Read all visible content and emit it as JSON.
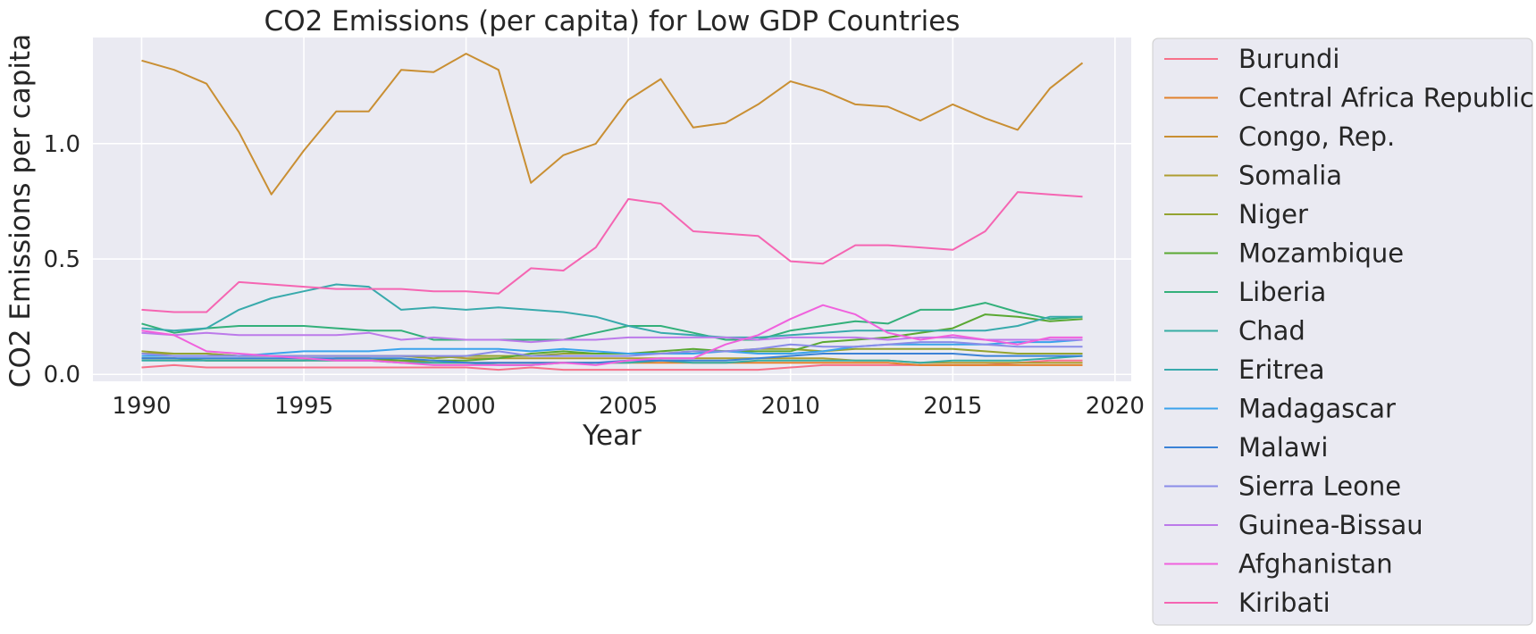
{
  "chart_data": {
    "type": "line",
    "title": "CO2 Emissions (per capita) for Low GDP Countries",
    "xlabel": "Year",
    "ylabel": "CO2 Emissions per capita",
    "xlim": [
      1988.5,
      2020.5
    ],
    "ylim": [
      -0.03,
      1.46
    ],
    "xticks": [
      1990,
      1995,
      2000,
      2005,
      2010,
      2015,
      2020
    ],
    "xtick_labels": [
      "1990",
      "1995",
      "2000",
      "2005",
      "2010",
      "2015",
      "2020"
    ],
    "yticks": [
      0.0,
      0.5,
      1.0
    ],
    "ytick_labels": [
      "0.0",
      "0.5",
      "1.0"
    ],
    "grid": true,
    "legend_position": "outside-right",
    "x": [
      1990,
      1991,
      1992,
      1993,
      1994,
      1995,
      1996,
      1997,
      1998,
      1999,
      2000,
      2001,
      2002,
      2003,
      2004,
      2005,
      2006,
      2007,
      2008,
      2009,
      2010,
      2011,
      2012,
      2013,
      2014,
      2015,
      2016,
      2017,
      2018,
      2019
    ],
    "series": [
      {
        "name": "Burundi",
        "color": "#f77189",
        "values": [
          0.03,
          0.04,
          0.03,
          0.03,
          0.03,
          0.03,
          0.03,
          0.03,
          0.03,
          0.03,
          0.03,
          0.02,
          0.03,
          0.02,
          0.02,
          0.02,
          0.02,
          0.02,
          0.02,
          0.02,
          0.03,
          0.04,
          0.04,
          0.04,
          0.04,
          0.04,
          0.04,
          0.05,
          0.06,
          0.06
        ]
      },
      {
        "name": "Central Africa Republic",
        "color": "#e1812c",
        "values": [
          0.07,
          0.07,
          0.06,
          0.06,
          0.06,
          0.06,
          0.06,
          0.06,
          0.06,
          0.05,
          0.05,
          0.05,
          0.05,
          0.05,
          0.05,
          0.05,
          0.05,
          0.05,
          0.05,
          0.05,
          0.05,
          0.05,
          0.05,
          0.05,
          0.04,
          0.04,
          0.04,
          0.04,
          0.04,
          0.04
        ]
      },
      {
        "name": "Congo, Rep.",
        "color": "#c98f33",
        "values": [
          1.36,
          1.32,
          1.26,
          1.05,
          0.78,
          0.97,
          1.14,
          1.14,
          1.32,
          1.31,
          1.39,
          1.32,
          0.83,
          0.95,
          1.0,
          1.19,
          1.28,
          1.07,
          1.09,
          1.17,
          1.27,
          1.23,
          1.17,
          1.16,
          1.1,
          1.17,
          1.11,
          1.06,
          1.24,
          1.35
        ]
      },
      {
        "name": "Somalia",
        "color": "#ae9d31",
        "values": [
          0.09,
          0.09,
          0.09,
          0.08,
          0.08,
          0.08,
          0.08,
          0.08,
          0.08,
          0.08,
          0.07,
          0.07,
          0.07,
          0.07,
          0.07,
          0.07,
          0.07,
          0.07,
          0.07,
          0.07,
          0.07,
          0.07,
          0.06,
          0.06,
          0.05,
          0.05,
          0.05,
          0.05,
          0.05,
          0.05
        ]
      },
      {
        "name": "Niger",
        "color": "#94a331",
        "values": [
          0.1,
          0.09,
          0.09,
          0.08,
          0.08,
          0.08,
          0.08,
          0.08,
          0.08,
          0.07,
          0.08,
          0.08,
          0.08,
          0.09,
          0.09,
          0.09,
          0.09,
          0.1,
          0.1,
          0.11,
          0.11,
          0.1,
          0.11,
          0.11,
          0.11,
          0.11,
          0.1,
          0.09,
          0.09,
          0.09
        ]
      },
      {
        "name": "Mozambique",
        "color": "#5aa832",
        "values": [
          0.07,
          0.07,
          0.06,
          0.06,
          0.06,
          0.06,
          0.07,
          0.07,
          0.06,
          0.06,
          0.06,
          0.07,
          0.09,
          0.1,
          0.09,
          0.09,
          0.1,
          0.11,
          0.1,
          0.1,
          0.1,
          0.14,
          0.15,
          0.16,
          0.18,
          0.2,
          0.26,
          0.25,
          0.23,
          0.24
        ]
      },
      {
        "name": "Liberia",
        "color": "#33b07a",
        "values": [
          0.22,
          0.18,
          0.2,
          0.21,
          0.21,
          0.21,
          0.2,
          0.19,
          0.19,
          0.15,
          0.15,
          0.15,
          0.15,
          0.15,
          0.18,
          0.21,
          0.21,
          0.18,
          0.15,
          0.15,
          0.19,
          0.21,
          0.23,
          0.22,
          0.28,
          0.28,
          0.31,
          0.27,
          0.24,
          0.25
        ]
      },
      {
        "name": "Chad",
        "color": "#36ada4",
        "values": [
          0.06,
          0.06,
          0.06,
          0.06,
          0.06,
          0.06,
          0.06,
          0.06,
          0.05,
          0.05,
          0.05,
          0.04,
          0.04,
          0.05,
          0.05,
          0.05,
          0.06,
          0.05,
          0.05,
          0.06,
          0.06,
          0.06,
          0.06,
          0.06,
          0.05,
          0.06,
          0.06,
          0.06,
          0.07,
          0.08
        ]
      },
      {
        "name": "Eritrea",
        "color": "#38aaac",
        "values": [
          0.2,
          0.19,
          0.2,
          0.28,
          0.33,
          0.36,
          0.39,
          0.38,
          0.28,
          0.29,
          0.28,
          0.29,
          0.28,
          0.27,
          0.25,
          0.21,
          0.18,
          0.17,
          0.16,
          0.16,
          0.17,
          0.18,
          0.19,
          0.19,
          0.19,
          0.19,
          0.19,
          0.21,
          0.25,
          0.25
        ]
      },
      {
        "name": "Madagascar",
        "color": "#3ba3ec",
        "values": [
          0.08,
          0.08,
          0.08,
          0.08,
          0.09,
          0.1,
          0.1,
          0.1,
          0.11,
          0.11,
          0.11,
          0.11,
          0.1,
          0.11,
          0.1,
          0.09,
          0.09,
          0.09,
          0.1,
          0.09,
          0.09,
          0.1,
          0.12,
          0.13,
          0.13,
          0.13,
          0.13,
          0.14,
          0.14,
          0.15
        ]
      },
      {
        "name": "Malawi",
        "color": "#3b82d6",
        "values": [
          0.07,
          0.07,
          0.07,
          0.07,
          0.07,
          0.07,
          0.07,
          0.07,
          0.07,
          0.06,
          0.05,
          0.05,
          0.05,
          0.05,
          0.05,
          0.06,
          0.06,
          0.06,
          0.06,
          0.07,
          0.08,
          0.09,
          0.09,
          0.09,
          0.09,
          0.09,
          0.08,
          0.08,
          0.08,
          0.08
        ]
      },
      {
        "name": "Sierra Leone",
        "color": "#8a8ce8",
        "values": [
          0.09,
          0.08,
          0.08,
          0.08,
          0.08,
          0.08,
          0.08,
          0.08,
          0.08,
          0.08,
          0.08,
          0.1,
          0.08,
          0.08,
          0.08,
          0.08,
          0.09,
          0.1,
          0.1,
          0.11,
          0.13,
          0.12,
          0.12,
          0.13,
          0.14,
          0.14,
          0.13,
          0.12,
          0.12,
          0.12
        ]
      },
      {
        "name": "Guinea-Bissau",
        "color": "#bc7aea",
        "values": [
          0.18,
          0.17,
          0.18,
          0.17,
          0.17,
          0.17,
          0.17,
          0.18,
          0.15,
          0.16,
          0.15,
          0.15,
          0.14,
          0.15,
          0.15,
          0.16,
          0.16,
          0.16,
          0.16,
          0.15,
          0.16,
          0.16,
          0.16,
          0.15,
          0.16,
          0.16,
          0.15,
          0.15,
          0.15,
          0.15
        ]
      },
      {
        "name": "Afghanistan",
        "color": "#f061dd",
        "values": [
          0.19,
          0.17,
          0.1,
          0.09,
          0.08,
          0.07,
          0.06,
          0.06,
          0.05,
          0.04,
          0.04,
          0.04,
          0.04,
          0.05,
          0.04,
          0.06,
          0.07,
          0.07,
          0.13,
          0.17,
          0.24,
          0.3,
          0.26,
          0.18,
          0.15,
          0.17,
          0.15,
          0.13,
          0.16,
          0.16
        ]
      },
      {
        "name": "Kiribati",
        "color": "#f565b2",
        "values": [
          0.28,
          0.27,
          0.27,
          0.4,
          0.39,
          0.38,
          0.37,
          0.37,
          0.37,
          0.36,
          0.36,
          0.35,
          0.46,
          0.45,
          0.55,
          0.76,
          0.74,
          0.62,
          0.61,
          0.6,
          0.49,
          0.48,
          0.56,
          0.56,
          0.55,
          0.54,
          0.62,
          0.79,
          0.78,
          0.77
        ]
      }
    ]
  }
}
